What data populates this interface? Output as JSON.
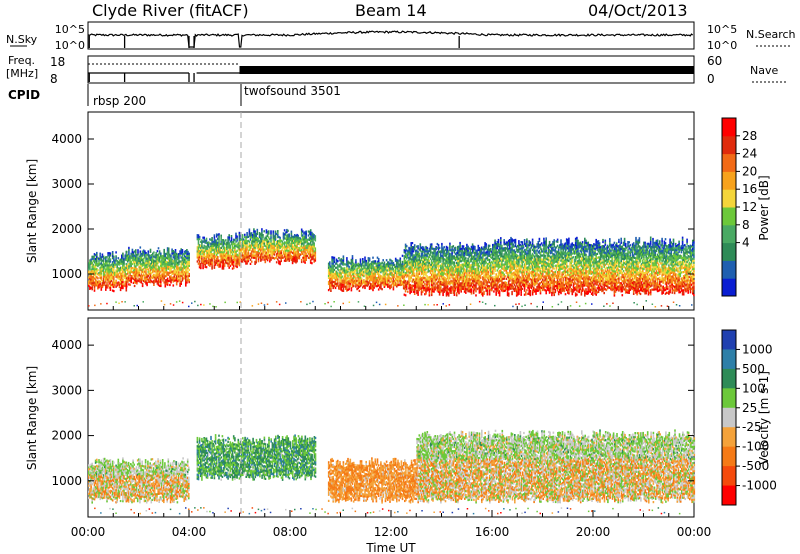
{
  "header": {
    "station": "Clyde River (fitACF)",
    "beam": "Beam 14",
    "date": "04/Oct/2013"
  },
  "panels": {
    "nsky_label": "N.Sky",
    "nsearch_label": "N.Search",
    "nsky_ticks": [
      "10^5",
      "10^0"
    ],
    "nsearch_ticks": [
      "10^5",
      "10^0"
    ],
    "freq_label_1": "Freq.",
    "freq_label_2": "[MHz]",
    "freq_ticks": [
      "18",
      "8"
    ],
    "nave_label": "Nave",
    "nave_ticks": [
      "60",
      "0"
    ],
    "cpid_label": "CPID",
    "cpid_modes": [
      {
        "name": "rbsp 200",
        "start_hour": 0,
        "end_hour": 6
      },
      {
        "name": "twofsound 3501",
        "start_hour": 6,
        "end_hour": 24
      }
    ]
  },
  "chart_data": [
    {
      "type": "heatmap",
      "title": "",
      "xlabel": "",
      "ylabel": "Slant Range [km]",
      "xlim": [
        0,
        24
      ],
      "ylim": [
        200,
        4600
      ],
      "yticks": [
        1000,
        2000,
        3000,
        4000
      ],
      "colorbar": {
        "label": "Power [dB]",
        "ticks": [
          "28",
          "24",
          "20",
          "16",
          "12",
          "8",
          "4"
        ],
        "colors": [
          "#0a1ed2",
          "#1f5fb0",
          "#2e8b57",
          "#49a963",
          "#6cc83a",
          "#f4d53a",
          "#f7a21c",
          "#f26a16",
          "#e02b0c",
          "#ff0000"
        ]
      },
      "scatter_bands": [
        {
          "start_hour": 0.0,
          "end_hour": 1.5,
          "min_km": 600,
          "max_km": 1500,
          "level": "high"
        },
        {
          "start_hour": 1.5,
          "end_hour": 4.0,
          "min_km": 700,
          "max_km": 1600,
          "level": "high"
        },
        {
          "start_hour": 4.3,
          "end_hour": 6.0,
          "min_km": 1100,
          "max_km": 1900,
          "level": "medium"
        },
        {
          "start_hour": 6.0,
          "end_hour": 9.0,
          "min_km": 1200,
          "max_km": 2000,
          "level": "medium"
        },
        {
          "start_hour": 9.5,
          "end_hour": 12.5,
          "min_km": 600,
          "max_km": 1400,
          "level": "high"
        },
        {
          "start_hour": 12.5,
          "end_hour": 16.0,
          "min_km": 500,
          "max_km": 1700,
          "level": "high"
        },
        {
          "start_hour": 16.0,
          "end_hour": 24.0,
          "min_km": 500,
          "max_km": 1800,
          "level": "high"
        }
      ]
    },
    {
      "type": "heatmap",
      "title": "",
      "xlabel": "Time UT",
      "ylabel": "Slant Range [km]",
      "xlim": [
        0,
        24
      ],
      "ylim": [
        200,
        4600
      ],
      "yticks": [
        1000,
        2000,
        3000,
        4000
      ],
      "xticks": [
        "00:00",
        "04:00",
        "08:00",
        "12:00",
        "16:00",
        "20:00",
        "00:00"
      ],
      "colorbar": {
        "label": "Velocity [m s-1]",
        "ticks": [
          "1000",
          "500",
          "100",
          "25",
          "-25",
          "-100",
          "-500",
          "-1000"
        ],
        "colors": [
          "#2040b0",
          "#2e7fa8",
          "#2e8b57",
          "#6cc83a",
          "#c8c8c8",
          "#f4a23a",
          "#f57a16",
          "#f54a0c",
          "#ff0000"
        ]
      },
      "scatter_bands": [
        {
          "start_hour": 0.0,
          "end_hour": 4.0,
          "min_km": 500,
          "max_km": 1500,
          "level": "mixed"
        },
        {
          "start_hour": 4.3,
          "end_hour": 9.0,
          "min_km": 1000,
          "max_km": 2000,
          "level": "positive"
        },
        {
          "start_hour": 9.5,
          "end_hour": 13.0,
          "min_km": 500,
          "max_km": 1500,
          "level": "negative"
        },
        {
          "start_hour": 13.0,
          "end_hour": 24.0,
          "min_km": 500,
          "max_km": 2100,
          "level": "mixed"
        }
      ]
    }
  ]
}
